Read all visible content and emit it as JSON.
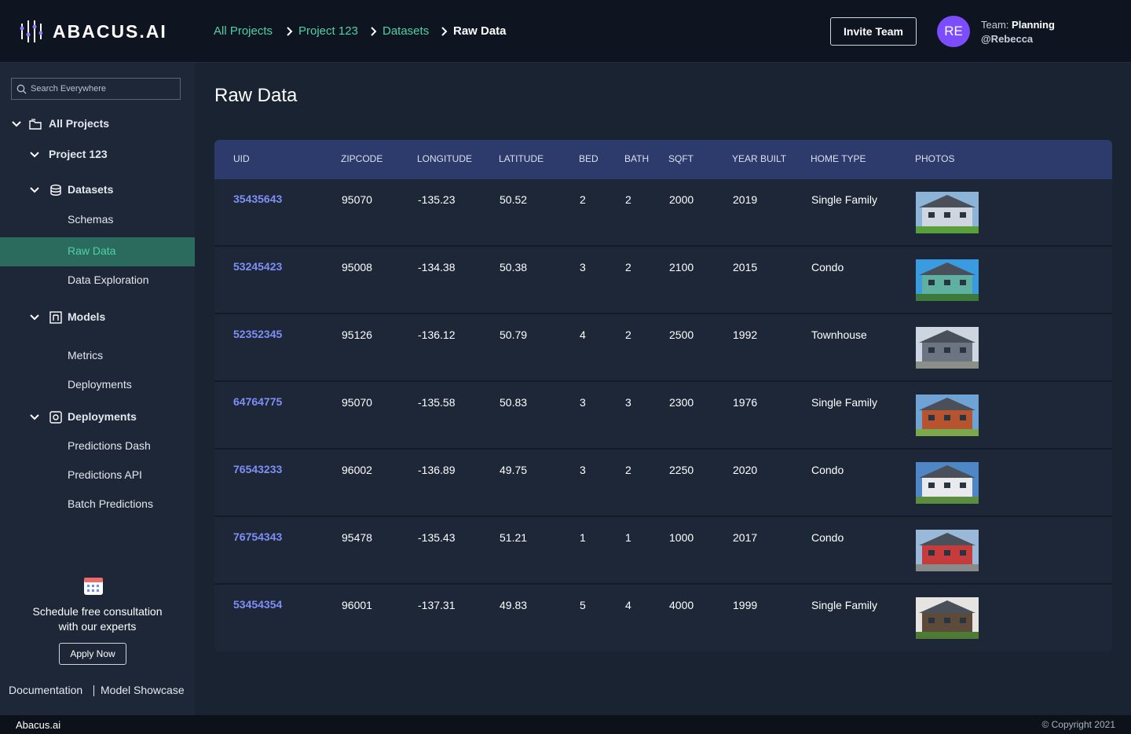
{
  "header": {
    "logo": "ABACUS.AI",
    "breadcrumbs": [
      "All Projects",
      "Project 123",
      "Datasets",
      "Raw Data"
    ],
    "invite_button": "Invite Team",
    "avatar": "RE",
    "team_label": "Team:",
    "team_name": "Planning",
    "user": "@Rebecca"
  },
  "sidebar": {
    "search_placeholder": "Search Everywhere",
    "nav": [
      {
        "label": "All Projects",
        "level": 0,
        "chevron": true,
        "icon": "folder"
      },
      {
        "label": "Project 123",
        "level": 1,
        "chevron": true
      },
      {
        "label": "Datasets",
        "level": 1,
        "chevron": true,
        "icon": "db"
      },
      {
        "label": "Schemas",
        "level": 2
      },
      {
        "label": "Raw Data",
        "level": 2,
        "active": true
      },
      {
        "label": "Data Exploration",
        "level": 2
      },
      {
        "label": "Models",
        "level": 1,
        "chevron": true,
        "icon": "model"
      },
      {
        "label": "Metrics",
        "level": 2
      },
      {
        "label": "Deployments",
        "level": 2
      },
      {
        "label": "Deployments",
        "level": 1,
        "chevron": true,
        "icon": "deploy"
      },
      {
        "label": "Predictions Dash",
        "level": 2
      },
      {
        "label": "Predictions API",
        "level": 2
      },
      {
        "label": "Batch Predictions",
        "level": 2
      }
    ],
    "promo_line1": "Schedule free consultation",
    "promo_line2": "with our experts",
    "promo_button": "Apply Now",
    "links": [
      "Documentation",
      "Model Showcase"
    ]
  },
  "main": {
    "title": "Raw Data"
  },
  "table": {
    "columns": [
      "UID",
      "ZIPCODE",
      "LONGITUDE",
      "LATITUDE",
      "BED",
      "BATH",
      "SQFT",
      "YEAR BUILT",
      "HOME TYPE",
      "PHOTOS"
    ],
    "rows": [
      [
        "35435643",
        95070,
        -135.23,
        50.52,
        2,
        2,
        2000,
        2019,
        "Single Family"
      ],
      [
        "53245423",
        95008,
        -134.38,
        50.38,
        3,
        2,
        2100,
        2015,
        "Condo"
      ],
      [
        "52352345",
        95126,
        -136.12,
        50.79,
        4,
        2,
        2500,
        1992,
        "Townhouse"
      ],
      [
        "64764775",
        95070,
        -135.58,
        50.83,
        3,
        3,
        2300,
        1976,
        "Single Family"
      ],
      [
        "76543233",
        96002,
        -136.89,
        49.75,
        3,
        2,
        2250,
        2020,
        "Condo"
      ],
      [
        "76754343",
        95478,
        -135.43,
        51.21,
        1,
        1,
        1000,
        2017,
        "Condo"
      ],
      [
        "53454354",
        96001,
        -137.31,
        49.83,
        5,
        4,
        4000,
        1999,
        "Single Family"
      ]
    ]
  },
  "footer": {
    "left": "Abacus.ai",
    "right": "© Copyright 2021"
  }
}
